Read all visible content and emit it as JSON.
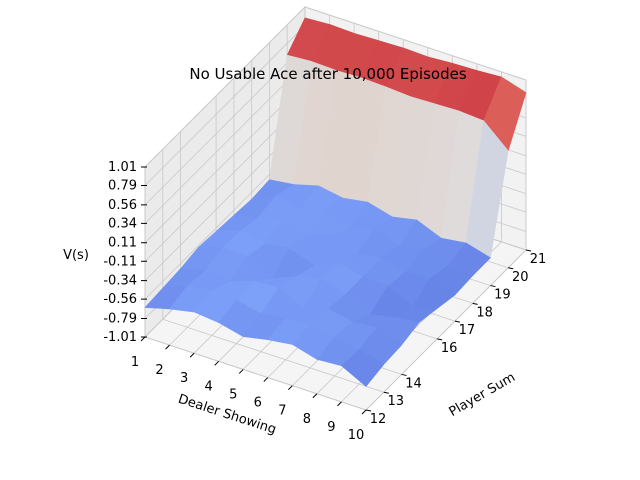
{
  "chart_data": {
    "type": "surface3d",
    "title": "No Usable Ace after 10,000 Episodes",
    "xlabel": "Dealer Showing",
    "ylabel": "Player Sum",
    "zlabel": "V(s)",
    "x": [
      1,
      2,
      3,
      4,
      5,
      6,
      7,
      8,
      9,
      10
    ],
    "y": [
      12,
      13,
      14,
      15,
      16,
      17,
      18,
      19,
      20,
      21
    ],
    "x_ticks": [
      "1",
      "2",
      "3",
      "4",
      "5",
      "6",
      "7",
      "8",
      "9",
      "10"
    ],
    "y_ticks": [
      "12",
      "13",
      "14",
      "16",
      "17",
      "18",
      "19",
      "20",
      "21"
    ],
    "z_ticks": [
      "1.01",
      "0.79",
      "0.56",
      "0.34",
      "0.11",
      "-0.11",
      "-0.34",
      "-0.56",
      "-0.79",
      "-1.01"
    ],
    "zlim": [
      -1.01,
      1.01
    ],
    "colormap": "coolwarm",
    "grid": true,
    "z": [
      [
        -0.66,
        -0.58,
        -0.52,
        -0.55,
        -0.62,
        -0.56,
        -0.52,
        -0.6,
        -0.58,
        -0.73
      ],
      [
        -0.64,
        -0.52,
        -0.48,
        -0.5,
        -0.56,
        -0.52,
        -0.5,
        -0.55,
        -0.6,
        -0.68
      ],
      [
        -0.62,
        -0.55,
        -0.58,
        -0.48,
        -0.46,
        -0.62,
        -0.52,
        -0.58,
        -0.55,
        -0.66
      ],
      [
        -0.58,
        -0.48,
        -0.5,
        -0.66,
        -0.54,
        -0.47,
        -0.56,
        -0.7,
        -0.64,
        -0.6
      ],
      [
        -0.6,
        -0.5,
        -0.55,
        -0.52,
        -0.62,
        -0.5,
        -0.56,
        -0.58,
        -0.72,
        -0.65
      ],
      [
        -0.62,
        -0.55,
        -0.48,
        -0.57,
        -0.46,
        -0.6,
        -0.55,
        -0.62,
        -0.6,
        -0.7
      ],
      [
        -0.64,
        -0.5,
        -0.56,
        -0.48,
        -0.6,
        -0.52,
        -0.62,
        -0.56,
        -0.66,
        -0.68
      ],
      [
        -0.62,
        -0.58,
        -0.5,
        -0.55,
        -0.5,
        -0.58,
        -0.52,
        -0.64,
        -0.6,
        -0.68
      ],
      [
        0.65,
        0.67,
        0.66,
        0.67,
        0.66,
        0.64,
        0.65,
        0.66,
        0.64,
        0.38
      ],
      [
        0.88,
        0.9,
        0.89,
        0.9,
        0.91,
        0.9,
        0.92,
        0.93,
        0.95,
        0.86
      ]
    ]
  }
}
